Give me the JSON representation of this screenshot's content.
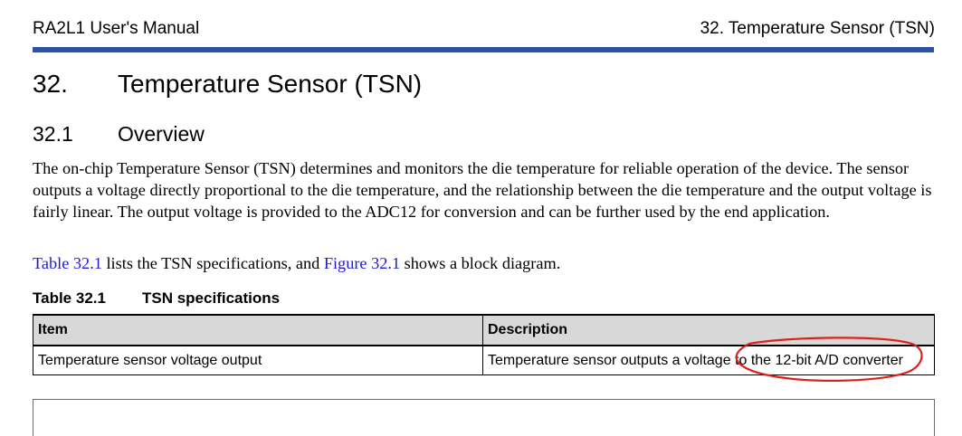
{
  "header": {
    "left": "RA2L1 User's Manual",
    "right": "32. Temperature Sensor (TSN)",
    "rule_color": "#2e52a3"
  },
  "chapter": {
    "number": "32.",
    "title": "Temperature Sensor (TSN)"
  },
  "section": {
    "number": "32.1",
    "title": "Overview"
  },
  "overview_text": "The on-chip Temperature Sensor (TSN) determines and monitors the die temperature for reliable operation of the device. The sensor outputs a voltage directly proportional to the die temperature, and the relationship between the die temperature and the output voltage is fairly linear. The output voltage is provided to the ADC12 for conversion and can be further used by the end application.",
  "reference": {
    "link1": "Table 32.1",
    "mid": " lists the TSN specifications, and ",
    "link2": "Figure 32.1",
    "end": " shows a block diagram.",
    "link_color": "#1a1ad6"
  },
  "table": {
    "caption_number": "Table 32.1",
    "caption_title": "TSN specifications",
    "headers": [
      "Item",
      "Description"
    ],
    "rows": [
      [
        "Temperature sensor voltage output",
        "Temperature sensor outputs a voltage to the 12-bit A/D converter"
      ]
    ]
  },
  "annotation": {
    "shape": "ellipse",
    "color": "#e0201a"
  }
}
